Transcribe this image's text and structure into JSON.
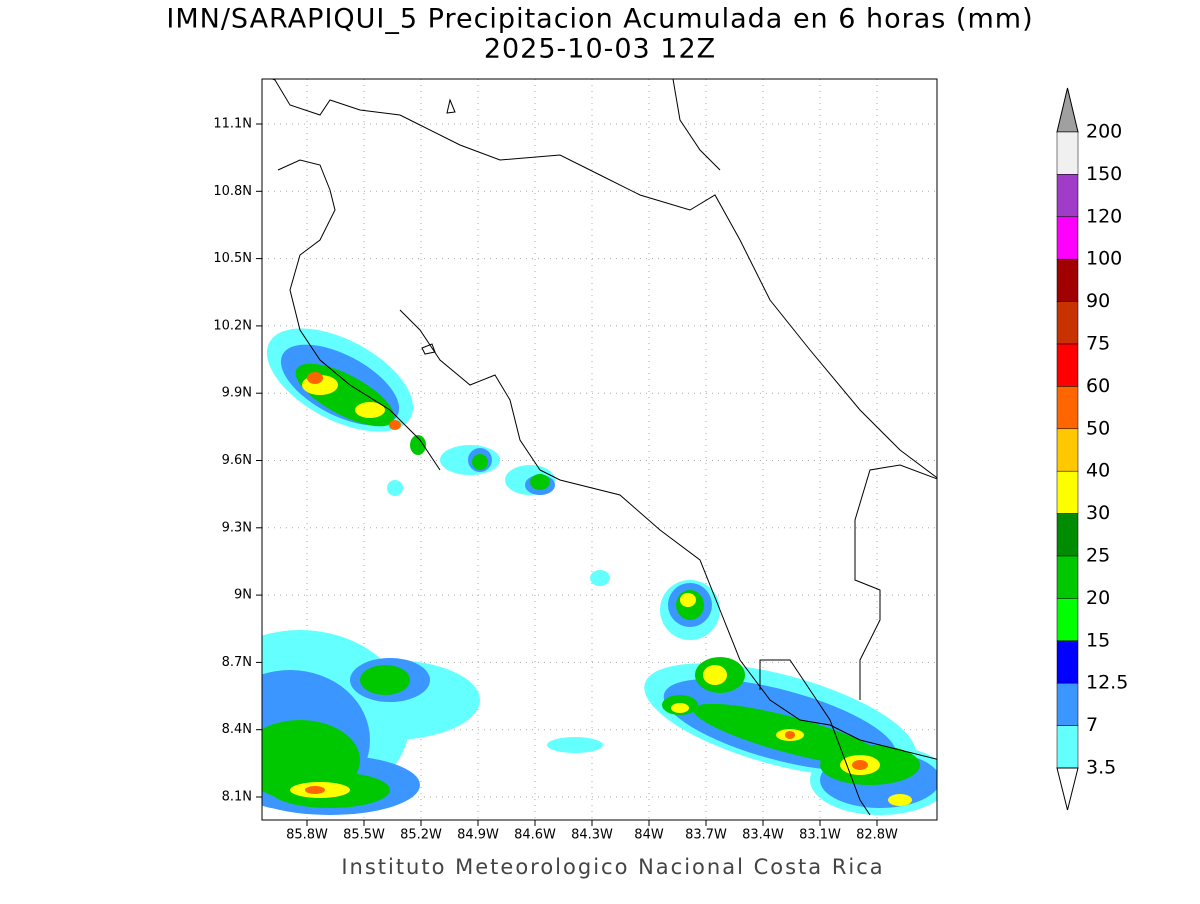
{
  "header": {
    "title": "IMN/SARAPIQUI_5 Precipitacion Acumulada en 6 horas (mm)",
    "subtitle": "2025-10-03 12Z"
  },
  "map": {
    "lat_labels": [
      "11.1N",
      "10.8N",
      "10.5N",
      "10.2N",
      "9.9N",
      "9.6N",
      "9.3N",
      "9N",
      "8.7N",
      "8.4N",
      "8.1N"
    ],
    "lon_labels": [
      "85.8W",
      "85.5W",
      "85.2W",
      "84.9W",
      "84.6W",
      "84.3W",
      "84W",
      "83.7W",
      "83.4W",
      "83.1W",
      "82.8W"
    ]
  },
  "colorbar": {
    "levels": [
      200,
      150,
      120,
      100,
      90,
      75,
      60,
      50,
      40,
      30,
      25,
      20,
      15,
      12.5,
      7,
      3.5
    ],
    "colors": [
      "#a0a0a0",
      "#f0f0f0",
      "#a03cc8",
      "#ff00ff",
      "#a00000",
      "#c83200",
      "#ff0000",
      "#ff6600",
      "#ffc800",
      "#ffff00",
      "#008c00",
      "#00c800",
      "#00ff00",
      "#0000ff",
      "#3c96ff",
      "#64ffff",
      "#ffffff"
    ]
  },
  "footer": "Instituto Meteorologico Nacional Costa Rica"
}
